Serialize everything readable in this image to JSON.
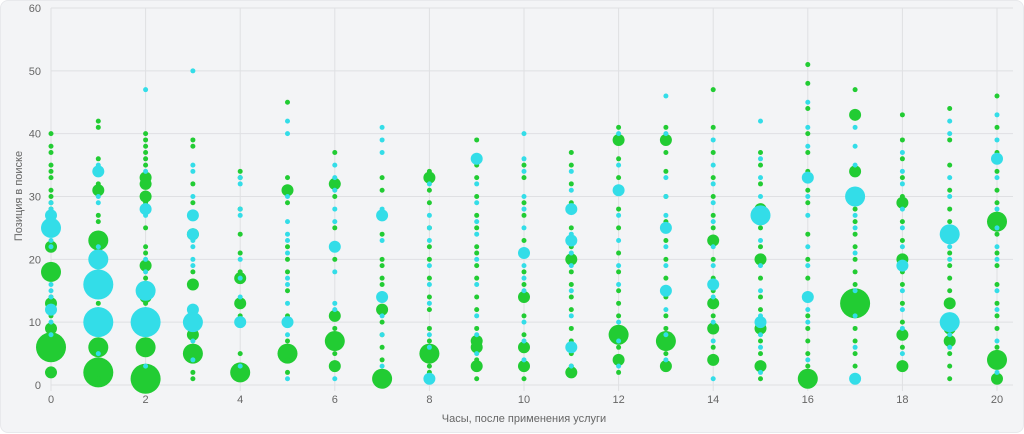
{
  "chart_data": {
    "type": "scatter",
    "subtype": "bubble",
    "xlabel": "Часы, после применения услуги",
    "ylabel": "Позиция в поиске",
    "xlim": [
      0,
      20
    ],
    "ylim": [
      0,
      60
    ],
    "xticks": [
      "0",
      "2",
      "4",
      "6",
      "8",
      "10",
      "12",
      "14",
      "16",
      "18",
      "20"
    ],
    "yticks": [
      "0",
      "10",
      "20",
      "30",
      "40",
      "50",
      "60"
    ],
    "grid": true,
    "colors": {
      "green": "#22cc33",
      "cyan": "#33dde8"
    },
    "series": [
      {
        "name": "green",
        "points": [
          [
            0,
            [
              40,
              38,
              37,
              35,
              34,
              33,
              31,
              30,
              29,
              28,
              25,
              [
                22,
                2
              ],
              [
                18,
                3
              ],
              14,
              [
                13,
                2
              ],
              11,
              [
                9,
                2
              ],
              [
                6,
                4
              ],
              [
                2,
                2
              ]
            ]
          ],
          [
            1,
            [
              42,
              41,
              36,
              32,
              [
                31,
                2
              ],
              27,
              26,
              [
                23,
                3
              ],
              20,
              18,
              15,
              13,
              10,
              9,
              [
                6,
                3
              ],
              4,
              [
                2,
                4
              ],
              1
            ]
          ],
          [
            2,
            [
              40,
              39,
              38,
              37,
              36,
              35,
              [
                33,
                2
              ],
              [
                32,
                2
              ],
              [
                30,
                2
              ],
              29,
              25,
              22,
              21,
              [
                19,
                2
              ],
              17,
              [
                14,
                2
              ],
              13,
              11,
              [
                9,
                2
              ],
              [
                6,
                3
              ],
              [
                1,
                4
              ]
            ]
          ],
          [
            3,
            [
              39,
              38,
              32,
              29,
              [
                24,
                2
              ],
              18,
              [
                16,
                2
              ],
              10,
              9,
              [
                8,
                2
              ],
              [
                5,
                3
              ],
              2,
              1
            ]
          ],
          [
            4,
            [
              34,
              33,
              28,
              24,
              21,
              18,
              [
                17,
                2
              ],
              [
                13,
                2
              ],
              11,
              5,
              [
                2,
                3
              ]
            ]
          ],
          [
            5,
            [
              45,
              33,
              [
                31,
                2
              ],
              29,
              22,
              20,
              18,
              15,
              11,
              10,
              7,
              [
                5,
                3
              ],
              4,
              2
            ]
          ],
          [
            6,
            [
              37,
              [
                32,
                2
              ],
              30,
              25,
              22,
              20,
              [
                11,
                2
              ],
              9,
              [
                7,
                3
              ],
              5,
              [
                3,
                2
              ]
            ]
          ],
          [
            7,
            [
              33,
              31,
              27,
              24,
              20,
              19,
              17,
              16,
              14,
              [
                12,
                2
              ],
              10,
              8,
              6,
              4,
              [
                1,
                3
              ]
            ]
          ],
          [
            8,
            [
              34,
              [
                33,
                2
              ],
              31,
              29,
              25,
              22,
              20,
              17,
              14,
              12,
              9,
              7,
              [
                5,
                3
              ],
              3,
              2
            ]
          ],
          [
            9,
            [
              39,
              35,
              33,
              30,
              27,
              25,
              22,
              21,
              19,
              17,
              14,
              12,
              9,
              [
                7,
                2
              ],
              [
                6,
                2
              ],
              4,
              [
                3,
                2
              ],
              1
            ]
          ],
          [
            10,
            [
              35,
              33,
              29,
              27,
              23,
              21,
              18,
              16,
              [
                14,
                2
              ],
              11,
              8,
              [
                6,
                2
              ],
              [
                3,
                2
              ],
              1
            ]
          ],
          [
            11,
            [
              37,
              35,
              32,
              29,
              25,
              22,
              [
                20,
                2
              ],
              18,
              16,
              14,
              12,
              9,
              7,
              5,
              3,
              [
                2,
                2
              ]
            ]
          ],
          [
            12,
            [
              41,
              [
                39,
                2
              ],
              36,
              33,
              31,
              28,
              25,
              21,
              18,
              15,
              13,
              11,
              [
                8,
                3
              ],
              6,
              [
                4,
                2
              ],
              2
            ]
          ],
          [
            13,
            [
              41,
              [
                39,
                2
              ],
              37,
              34,
              30,
              26,
              23,
              20,
              17,
              14,
              11,
              9,
              [
                7,
                3
              ],
              5,
              [
                3,
                2
              ]
            ]
          ],
          [
            14,
            [
              47,
              41,
              37,
              33,
              30,
              27,
              25,
              [
                23,
                2
              ],
              20,
              17,
              15,
              [
                13,
                2
              ],
              11,
              [
                9,
                2
              ],
              6,
              [
                4,
                2
              ]
            ]
          ],
          [
            15,
            [
              37,
              35,
              32,
              [
                28,
                2
              ],
              25,
              22,
              [
                20,
                2
              ],
              17,
              14,
              12,
              [
                9,
                2
              ],
              7,
              5,
              [
                3,
                2
              ],
              1
            ]
          ],
          [
            16,
            [
              51,
              48,
              44,
              40,
              37,
              34,
              31,
              29,
              24,
              20,
              17,
              14,
              11,
              9,
              7,
              5,
              3,
              [
                1,
                3
              ]
            ]
          ],
          [
            17,
            [
              47,
              [
                43,
                2
              ],
              [
                34,
                2
              ],
              31,
              28,
              26,
              24,
              22,
              20,
              18,
              16,
              [
                13,
                4
              ],
              9,
              7,
              5,
              3,
              1
            ]
          ],
          [
            18,
            [
              43,
              39,
              36,
              33,
              30,
              [
                29,
                2
              ],
              26,
              23,
              [
                20,
                2
              ],
              18,
              16,
              13,
              10,
              [
                8,
                2
              ],
              6,
              [
                3,
                2
              ]
            ]
          ],
          [
            19,
            [
              44,
              39,
              35,
              31,
              28,
              26,
              [
                24,
                2
              ],
              21,
              19,
              17,
              15,
              [
                13,
                2
              ],
              11,
              [
                9,
                2
              ],
              [
                7,
                2
              ],
              5,
              3,
              1
            ]
          ],
          [
            20,
            [
              46,
              41,
              37,
              34,
              31,
              29,
              [
                26,
                3
              ],
              24,
              21,
              19,
              16,
              13,
              11,
              9,
              6,
              [
                4,
                3
              ],
              [
                1,
                2
              ]
            ]
          ]
        ]
      },
      {
        "name": "cyan",
        "points": [
          [
            0,
            [
              29,
              28,
              [
                27,
                2
              ],
              [
                25,
                3
              ],
              23,
              22,
              16,
              15,
              14,
              [
                12,
                2
              ],
              10,
              8
            ]
          ],
          [
            1,
            [
              35,
              [
                34,
                2
              ],
              30,
              29,
              22,
              21,
              [
                20,
                3
              ],
              [
                16,
                4
              ],
              12,
              [
                10,
                4
              ],
              8,
              5
            ]
          ],
          [
            2,
            [
              47,
              34,
              [
                28,
                2
              ],
              27,
              20,
              18,
              [
                15,
                3
              ],
              12,
              [
                10,
                4
              ],
              8,
              3
            ]
          ],
          [
            3,
            [
              50,
              35,
              34,
              30,
              [
                27,
                2
              ],
              [
                24,
                2
              ],
              23,
              22,
              20,
              19,
              [
                12,
                2
              ],
              [
                10,
                3
              ],
              7,
              4
            ]
          ],
          [
            4,
            [
              33,
              32,
              28,
              27,
              20,
              17,
              14,
              [
                10,
                2
              ],
              3
            ]
          ],
          [
            5,
            [
              42,
              40,
              30,
              26,
              24,
              23,
              21,
              17,
              16,
              13,
              [
                10,
                2
              ],
              8,
              1
            ]
          ],
          [
            6,
            [
              35,
              33,
              31,
              28,
              26,
              [
                22,
                2
              ],
              18,
              13,
              12,
              1
            ]
          ],
          [
            7,
            [
              41,
              39,
              37,
              28,
              [
                27,
                2
              ],
              23,
              [
                14,
                2
              ],
              11,
              8,
              3
            ]
          ],
          [
            8,
            [
              32,
              27,
              25,
              23,
              19,
              16,
              13,
              8,
              6,
              [
                1,
                2
              ]
            ]
          ],
          [
            9,
            [
              [
                36,
                2
              ],
              32,
              29,
              26,
              24,
              20,
              16,
              11,
              8,
              5
            ]
          ],
          [
            10,
            [
              40,
              36,
              34,
              30,
              28,
              25,
              [
                21,
                2
              ],
              19,
              17,
              15,
              10,
              7,
              4
            ]
          ],
          [
            11,
            [
              34,
              31,
              [
                28,
                2
              ],
              24,
              [
                23,
                2
              ],
              21,
              19,
              15,
              11,
              [
                6,
                2
              ],
              3
            ]
          ],
          [
            12,
            [
              40,
              35,
              [
                31,
                2
              ],
              27,
              23,
              19,
              16,
              10,
              7,
              3
            ]
          ],
          [
            13,
            [
              46,
              40,
              33,
              30,
              27,
              [
                25,
                2
              ],
              22,
              19,
              [
                15,
                2
              ],
              12,
              8,
              4
            ]
          ],
          [
            14,
            [
              39,
              35,
              32,
              29,
              26,
              22,
              19,
              [
                16,
                2
              ],
              14,
              10,
              7,
              1
            ]
          ],
          [
            15,
            [
              42,
              36,
              33,
              30,
              [
                27,
                3
              ],
              23,
              19,
              15,
              11,
              [
                10,
                2
              ],
              8,
              6,
              2
            ]
          ],
          [
            16,
            [
              45,
              41,
              38,
              [
                33,
                2
              ],
              30,
              27,
              22,
              19,
              [
                14,
                2
              ],
              12,
              10,
              4
            ]
          ],
          [
            17,
            [
              41,
              38,
              35,
              [
                30,
                3
              ],
              27,
              25,
              21,
              15,
              11,
              6,
              [
                1,
                2
              ]
            ]
          ],
          [
            18,
            [
              37,
              34,
              32,
              28,
              25,
              22,
              [
                19,
                2
              ],
              15,
              12,
              9,
              5
            ]
          ],
          [
            19,
            [
              42,
              40,
              33,
              30,
              [
                24,
                3
              ],
              22,
              20,
              [
                10,
                3
              ],
              8,
              6
            ]
          ],
          [
            20,
            [
              43,
              39,
              [
                36,
                2
              ],
              33,
              28,
              25,
              22,
              20,
              15,
              12,
              7,
              2
            ]
          ]
        ]
      }
    ]
  }
}
